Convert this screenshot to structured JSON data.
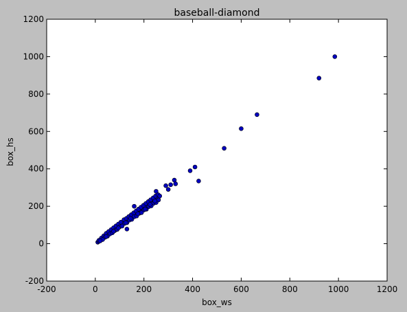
{
  "chart_data": {
    "type": "scatter",
    "title": "baseball-diamond",
    "xlabel": "box_ws",
    "ylabel": "box_hs",
    "xlim": [
      -200,
      1200
    ],
    "ylim": [
      -200,
      1200
    ],
    "xticks": [
      -200,
      0,
      200,
      400,
      600,
      800,
      1000,
      1200
    ],
    "yticks": [
      -200,
      0,
      200,
      400,
      600,
      800,
      1000,
      1200
    ],
    "grid": false,
    "marker_color": "#0000bf",
    "series": [
      {
        "x": [
          10,
          14,
          18,
          22,
          26,
          30,
          34,
          38,
          42,
          46,
          50,
          54,
          58,
          62,
          66,
          70,
          74,
          78,
          82,
          86,
          90,
          94,
          98,
          102,
          106,
          110,
          115,
          120,
          125,
          130,
          135,
          140,
          145,
          150,
          155,
          160,
          165,
          170,
          175,
          180,
          185,
          190,
          195,
          200,
          205,
          210,
          215,
          220,
          225,
          230,
          235,
          240,
          245,
          250,
          255,
          260,
          15,
          25,
          35,
          45,
          55,
          65,
          75,
          85,
          95,
          105,
          118,
          128,
          138,
          148,
          158,
          168,
          178,
          188,
          198,
          208,
          218,
          228,
          238,
          248,
          258,
          40,
          60,
          80,
          100,
          120,
          140,
          160,
          180,
          200,
          220,
          240,
          260,
          30,
          50,
          70,
          90,
          110,
          130,
          150,
          170,
          190,
          210,
          230,
          250,
          20,
          45,
          75,
          95,
          125,
          145,
          175,
          205,
          225,
          245,
          130,
          160,
          250,
          265,
          290,
          300,
          310,
          325,
          330,
          390,
          410,
          425,
          530,
          600,
          665,
          920,
          985
        ],
        "y": [
          8,
          12,
          16,
          20,
          25,
          28,
          33,
          36,
          41,
          45,
          48,
          53,
          56,
          60,
          64,
          68,
          72,
          77,
          80,
          84,
          88,
          92,
          96,
          100,
          104,
          108,
          112,
          118,
          122,
          126,
          132,
          136,
          140,
          146,
          150,
          155,
          160,
          165,
          170,
          175,
          180,
          185,
          190,
          195,
          200,
          204,
          210,
          215,
          218,
          222,
          226,
          230,
          235,
          240,
          245,
          250,
          18,
          30,
          42,
          55,
          65,
          75,
          85,
          95,
          105,
          115,
          128,
          135,
          145,
          155,
          165,
          175,
          185,
          195,
          205,
          215,
          225,
          235,
          245,
          255,
          262,
          34,
          52,
          70,
          90,
          108,
          126,
          144,
          162,
          180,
          198,
          216,
          234,
          22,
          40,
          58,
          76,
          94,
          112,
          130,
          148,
          166,
          184,
          202,
          220,
          15,
          38,
          66,
          84,
          112,
          135,
          160,
          185,
          210,
          228,
          78,
          200,
          280,
          255,
          310,
          290,
          315,
          340,
          320,
          390,
          410,
          335,
          510,
          615,
          690,
          885,
          1000
        ]
      }
    ]
  }
}
